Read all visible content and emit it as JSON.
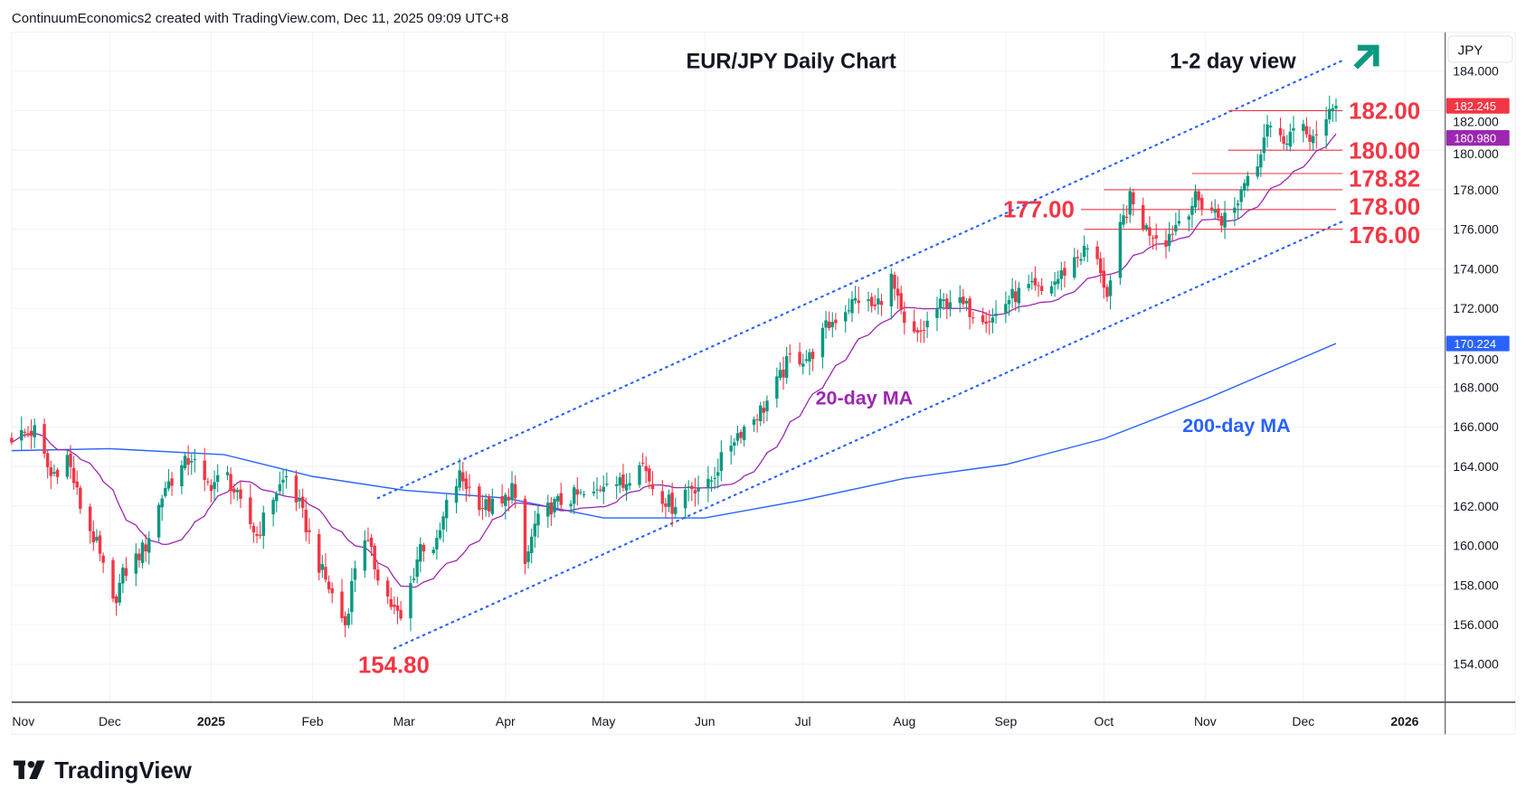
{
  "header": {
    "attribution": "ContinuumEconomics2 created with TradingView.com, Dec 11, 2025 09:09 UTC+8"
  },
  "footer": {
    "brand": "TradingView"
  },
  "currency_button": "JPY",
  "colors": {
    "up": "#089981",
    "down": "#f23645",
    "ma20": "#9c27b0",
    "ma200": "#2962ff",
    "annotation": "#f23645",
    "channel": "#2962ff",
    "arrow": "#089981"
  },
  "chart_data": {
    "type": "candlestick",
    "title": "EUR/JPY Daily Chart",
    "subtitle": "1-2 day view",
    "outlook_icon": "arrow-up-right-icon",
    "ylim": [
      152,
      186
    ],
    "y_ticks": [
      "184.000",
      "182.000",
      "180.000",
      "178.000",
      "176.000",
      "174.000",
      "172.000",
      "170.000",
      "168.000",
      "166.000",
      "164.000",
      "162.000",
      "160.000",
      "158.000",
      "156.000",
      "154.000"
    ],
    "x_ticks": [
      {
        "label": "Nov",
        "date": "2024-11-01",
        "bold": false
      },
      {
        "label": "Dec",
        "date": "2024-12-01",
        "bold": false
      },
      {
        "label": "2025",
        "date": "2025-01-01",
        "bold": true
      },
      {
        "label": "Feb",
        "date": "2025-02-01",
        "bold": false
      },
      {
        "label": "Mar",
        "date": "2025-03-01",
        "bold": false
      },
      {
        "label": "Apr",
        "date": "2025-04-01",
        "bold": false
      },
      {
        "label": "May",
        "date": "2025-05-01",
        "bold": false
      },
      {
        "label": "Jun",
        "date": "2025-06-01",
        "bold": false
      },
      {
        "label": "Jul",
        "date": "2025-07-01",
        "bold": false
      },
      {
        "label": "Aug",
        "date": "2025-08-01",
        "bold": false
      },
      {
        "label": "Sep",
        "date": "2025-09-01",
        "bold": false
      },
      {
        "label": "Oct",
        "date": "2025-10-01",
        "bold": false
      },
      {
        "label": "Nov",
        "date": "2025-11-01",
        "bold": false
      },
      {
        "label": "Dec",
        "date": "2025-12-01",
        "bold": false
      },
      {
        "label": "2026",
        "date": "2026-01-01",
        "bold": true
      }
    ],
    "close_path": [
      [
        "2024-11-01",
        165.5
      ],
      [
        "2024-11-08",
        165.8
      ],
      [
        "2024-11-13",
        163.5
      ],
      [
        "2024-11-18",
        164.5
      ],
      [
        "2024-11-22",
        162
      ],
      [
        "2024-11-27",
        160
      ],
      [
        "2024-12-02",
        157
      ],
      [
        "2024-12-05",
        158.5
      ],
      [
        "2024-12-12",
        160
      ],
      [
        "2024-12-18",
        163
      ],
      [
        "2024-12-26",
        164.5
      ],
      [
        "2024-12-30",
        163
      ],
      [
        "2025-01-06",
        163.5
      ],
      [
        "2025-01-10",
        162
      ],
      [
        "2025-01-15",
        160.5
      ],
      [
        "2025-01-20",
        162.5
      ],
      [
        "2025-01-24",
        163.5
      ],
      [
        "2025-01-28",
        162
      ],
      [
        "2025-02-03",
        159
      ],
      [
        "2025-02-07",
        157.5
      ],
      [
        "2025-02-11",
        156
      ],
      [
        "2025-02-14",
        159
      ],
      [
        "2025-02-17",
        160.5
      ],
      [
        "2025-02-20",
        159
      ],
      [
        "2025-02-25",
        157
      ],
      [
        "2025-02-28",
        156.2
      ],
      [
        "2025-03-03",
        158
      ],
      [
        "2025-03-06",
        160
      ],
      [
        "2025-03-11",
        160
      ],
      [
        "2025-03-14",
        162
      ],
      [
        "2025-03-18",
        163.5
      ],
      [
        "2025-03-25",
        162
      ],
      [
        "2025-03-31",
        162
      ],
      [
        "2025-04-03",
        163
      ],
      [
        "2025-04-07",
        159
      ],
      [
        "2025-04-10",
        161
      ],
      [
        "2025-04-15",
        162
      ],
      [
        "2025-04-22",
        162.5
      ],
      [
        "2025-04-28",
        162.5
      ],
      [
        "2025-05-02",
        163.5
      ],
      [
        "2025-05-07",
        163
      ],
      [
        "2025-05-12",
        164.5
      ],
      [
        "2025-05-16",
        163
      ],
      [
        "2025-05-22",
        162
      ],
      [
        "2025-05-27",
        163
      ],
      [
        "2025-06-02",
        163
      ],
      [
        "2025-06-05",
        164
      ],
      [
        "2025-06-10",
        165.5
      ],
      [
        "2025-06-16",
        166.5
      ],
      [
        "2025-06-19",
        167
      ],
      [
        "2025-06-24",
        168.5
      ],
      [
        "2025-06-27",
        169.5
      ],
      [
        "2025-07-03",
        169.5
      ],
      [
        "2025-07-08",
        171
      ],
      [
        "2025-07-14",
        172
      ],
      [
        "2025-07-18",
        172.5
      ],
      [
        "2025-07-23",
        172
      ],
      [
        "2025-07-28",
        173.5
      ],
      [
        "2025-08-01",
        171
      ],
      [
        "2025-08-05",
        170.5
      ],
      [
        "2025-08-11",
        172
      ],
      [
        "2025-08-15",
        172.5
      ],
      [
        "2025-08-20",
        172
      ],
      [
        "2025-08-28",
        171.5
      ],
      [
        "2025-09-02",
        172.5
      ],
      [
        "2025-09-08",
        173
      ],
      [
        "2025-09-12",
        172.8
      ],
      [
        "2025-09-17",
        173.5
      ],
      [
        "2025-09-22",
        174.5
      ],
      [
        "2025-09-26",
        175
      ],
      [
        "2025-09-30",
        174
      ],
      [
        "2025-10-02",
        172.5
      ],
      [
        "2025-10-03",
        173
      ],
      [
        "2025-10-06",
        176
      ],
      [
        "2025-10-09",
        177.5
      ],
      [
        "2025-10-14",
        176
      ],
      [
        "2025-10-20",
        175.5
      ],
      [
        "2025-10-24",
        176.5
      ],
      [
        "2025-10-29",
        177.5
      ],
      [
        "2025-11-03",
        177
      ],
      [
        "2025-11-06",
        176.5
      ],
      [
        "2025-11-10",
        177
      ],
      [
        "2025-11-13",
        178.5
      ],
      [
        "2025-11-17",
        179.5
      ],
      [
        "2025-11-20",
        181.5
      ],
      [
        "2025-11-24",
        180.5
      ],
      [
        "2025-11-28",
        181
      ],
      [
        "2025-12-03",
        180.8
      ],
      [
        "2025-12-05",
        180.5
      ],
      [
        "2025-12-08",
        181.2
      ],
      [
        "2025-12-09",
        182
      ],
      [
        "2025-12-10",
        182.3
      ],
      [
        "2025-12-11",
        182.245
      ]
    ],
    "ma200_path": [
      [
        "2024-11-01",
        164.8
      ],
      [
        "2024-12-01",
        164.9
      ],
      [
        "2025-01-05",
        164.6
      ],
      [
        "2025-02-01",
        163.5
      ],
      [
        "2025-03-01",
        162.8
      ],
      [
        "2025-04-01",
        162.4
      ],
      [
        "2025-05-01",
        161.4
      ],
      [
        "2025-06-01",
        161.4
      ],
      [
        "2025-07-01",
        162.3
      ],
      [
        "2025-08-01",
        163.4
      ],
      [
        "2025-09-01",
        164.1
      ],
      [
        "2025-10-01",
        165.4
      ],
      [
        "2025-11-01",
        167.4
      ],
      [
        "2025-12-11",
        170.224
      ]
    ],
    "channel": {
      "upper": [
        [
          "2025-02-21",
          162.4
        ],
        [
          "2025-12-13",
          184.54
        ]
      ],
      "lower": [
        [
          "2025-02-26",
          154.8
        ],
        [
          "2025-12-13",
          176.4
        ]
      ]
    },
    "levels": [
      {
        "label": "182.00",
        "price": 182.0,
        "from": "2025-11-08",
        "side": "right"
      },
      {
        "label": "180.00",
        "price": 180.0,
        "from": "2025-11-08",
        "side": "right"
      },
      {
        "label": "178.82",
        "price": 178.82,
        "from": "2025-10-28",
        "side": "right"
      },
      {
        "label": "178.00",
        "price": 178.0,
        "from": "2025-10-01",
        "side": "right"
      },
      {
        "label": "177.00",
        "price": 177.0,
        "from": "2025-09-24",
        "side": "left"
      },
      {
        "label": "176.00",
        "price": 176.0,
        "from": "2025-09-25",
        "side": "right"
      }
    ],
    "low_label": {
      "label": "154.80",
      "price": 154.8,
      "date": "2025-02-26"
    },
    "ma_labels": {
      "ma20": "20-day MA",
      "ma200": "200-day MA"
    },
    "price_badges": [
      {
        "label": "182.245",
        "price": 182.245,
        "kind": "last"
      },
      {
        "label": "180.980",
        "price": 180.98,
        "kind": "ma20"
      },
      {
        "label": "170.224",
        "price": 170.224,
        "kind": "ma200"
      }
    ]
  }
}
